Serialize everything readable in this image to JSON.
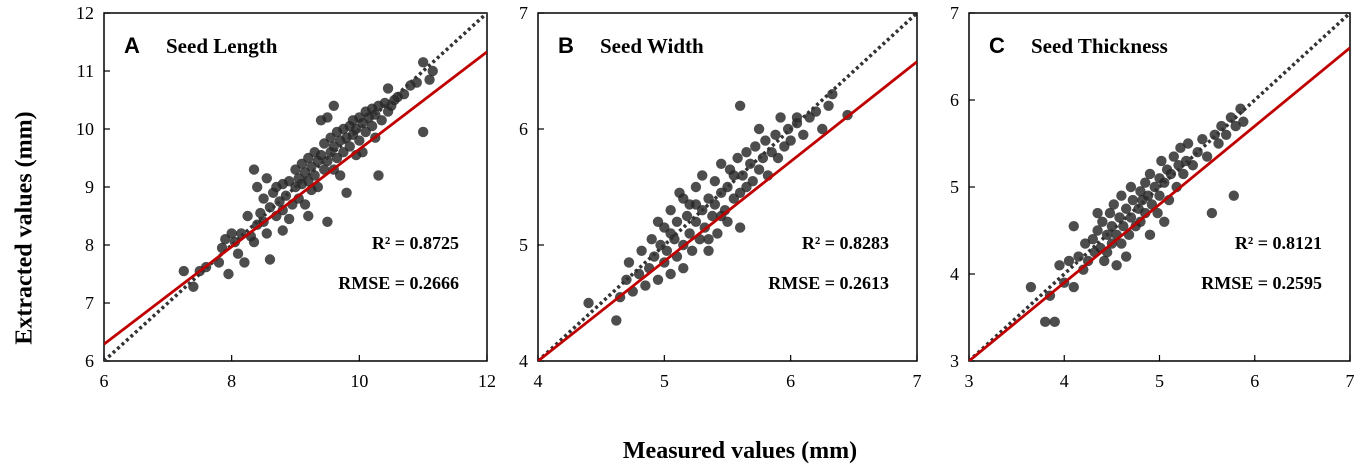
{
  "figure": {
    "xlabel": "Measured values (mm)",
    "ylabel": "Extracted values (mm)"
  },
  "colors": {
    "points": "#262626",
    "regression": "#c00000",
    "identity": "#333333"
  },
  "chart_data": [
    {
      "type": "scatter",
      "id": "A",
      "letter": "A",
      "title": "Seed Length",
      "xlim": [
        6,
        12
      ],
      "ylim": [
        6,
        12
      ],
      "xticks": [
        "6",
        "8",
        "10",
        "12"
      ],
      "yticks": [
        "6",
        "7",
        "8",
        "9",
        "10",
        "11",
        "12"
      ],
      "r2": "R² = 0.8725",
      "rmse": "RMSE = 0.2666",
      "fit": {
        "slope": 0.84,
        "intercept": 1.25
      },
      "identity": true,
      "points": [
        [
          7.25,
          7.55
        ],
        [
          7.4,
          7.28
        ],
        [
          7.5,
          7.55
        ],
        [
          7.6,
          7.62
        ],
        [
          7.8,
          7.7
        ],
        [
          7.85,
          7.95
        ],
        [
          7.9,
          8.1
        ],
        [
          7.95,
          7.5
        ],
        [
          8.0,
          8.2
        ],
        [
          8.05,
          8.05
        ],
        [
          8.1,
          7.85
        ],
        [
          8.15,
          8.2
        ],
        [
          8.2,
          7.7
        ],
        [
          8.25,
          8.5
        ],
        [
          8.3,
          8.15
        ],
        [
          8.35,
          8.05
        ],
        [
          8.4,
          9.0
        ],
        [
          8.4,
          8.35
        ],
        [
          8.45,
          8.55
        ],
        [
          8.5,
          8.4
        ],
        [
          8.5,
          8.8
        ],
        [
          8.55,
          8.2
        ],
        [
          8.6,
          7.75
        ],
        [
          8.6,
          8.65
        ],
        [
          8.65,
          8.9
        ],
        [
          8.7,
          8.5
        ],
        [
          8.7,
          9.0
        ],
        [
          8.75,
          8.75
        ],
        [
          8.8,
          8.6
        ],
        [
          8.8,
          9.05
        ],
        [
          8.85,
          8.85
        ],
        [
          8.9,
          9.1
        ],
        [
          8.9,
          8.45
        ],
        [
          8.95,
          8.7
        ],
        [
          9.0,
          9.0
        ],
        [
          9.0,
          9.3
        ],
        [
          9.05,
          8.8
        ],
        [
          9.05,
          9.15
        ],
        [
          9.1,
          9.4
        ],
        [
          9.1,
          9.05
        ],
        [
          9.15,
          8.7
        ],
        [
          9.15,
          9.25
        ],
        [
          9.2,
          9.5
        ],
        [
          9.2,
          9.1
        ],
        [
          9.25,
          8.95
        ],
        [
          9.25,
          9.35
        ],
        [
          9.3,
          9.6
        ],
        [
          9.3,
          9.2
        ],
        [
          9.35,
          9.45
        ],
        [
          9.35,
          9.0
        ],
        [
          9.4,
          10.15
        ],
        [
          9.4,
          9.55
        ],
        [
          9.45,
          9.3
        ],
        [
          9.45,
          9.75
        ],
        [
          9.5,
          9.45
        ],
        [
          9.5,
          8.4
        ],
        [
          9.55,
          9.6
        ],
        [
          9.55,
          9.85
        ],
        [
          9.6,
          9.3
        ],
        [
          9.6,
          9.7
        ],
        [
          9.65,
          9.95
        ],
        [
          9.65,
          9.5
        ],
        [
          9.7,
          9.8
        ],
        [
          9.7,
          9.2
        ],
        [
          9.75,
          10.0
        ],
        [
          9.75,
          9.6
        ],
        [
          9.8,
          9.85
        ],
        [
          9.8,
          8.9
        ],
        [
          9.85,
          10.05
        ],
        [
          9.85,
          9.7
        ],
        [
          9.9,
          9.9
        ],
        [
          9.9,
          10.15
        ],
        [
          9.95,
          9.55
        ],
        [
          9.95,
          10.0
        ],
        [
          10.0,
          10.2
        ],
        [
          10.0,
          9.8
        ],
        [
          10.05,
          10.1
        ],
        [
          10.05,
          9.6
        ],
        [
          10.1,
          10.3
        ],
        [
          10.1,
          9.95
        ],
        [
          10.15,
          10.2
        ],
        [
          10.2,
          10.35
        ],
        [
          10.2,
          10.05
        ],
        [
          10.25,
          10.25
        ],
        [
          10.3,
          9.2
        ],
        [
          10.3,
          10.4
        ],
        [
          10.35,
          10.15
        ],
        [
          10.4,
          10.45
        ],
        [
          10.45,
          10.3
        ],
        [
          10.5,
          10.4
        ],
        [
          10.55,
          10.5
        ],
        [
          10.6,
          10.55
        ],
        [
          10.7,
          10.6
        ],
        [
          10.8,
          10.75
        ],
        [
          10.9,
          10.8
        ],
        [
          11.0,
          11.15
        ],
        [
          11.0,
          9.95
        ],
        [
          11.1,
          10.85
        ],
        [
          11.15,
          11.0
        ],
        [
          8.35,
          9.3
        ],
        [
          8.55,
          9.15
        ],
        [
          9.5,
          10.2
        ],
        [
          10.25,
          9.85
        ],
        [
          9.2,
          8.5
        ],
        [
          8.8,
          8.25
        ],
        [
          9.6,
          10.4
        ],
        [
          10.45,
          10.7
        ]
      ]
    },
    {
      "type": "scatter",
      "id": "B",
      "letter": "B",
      "title": "Seed Width",
      "xlim": [
        4,
        7
      ],
      "ylim": [
        4,
        7
      ],
      "xticks": [
        "4",
        "5",
        "6",
        "7"
      ],
      "yticks": [
        "4",
        "5",
        "6",
        "7"
      ],
      "r2": "R² = 0.8283",
      "rmse": "RMSE = 0.2613",
      "fit": {
        "slope": 0.86,
        "intercept": 0.56
      },
      "identity": true,
      "points": [
        [
          4.4,
          4.5
        ],
        [
          4.62,
          4.35
        ],
        [
          4.65,
          4.55
        ],
        [
          4.7,
          4.7
        ],
        [
          4.72,
          4.85
        ],
        [
          4.75,
          4.6
        ],
        [
          4.8,
          4.75
        ],
        [
          4.82,
          4.95
        ],
        [
          4.85,
          4.65
        ],
        [
          4.88,
          4.8
        ],
        [
          4.9,
          5.05
        ],
        [
          4.92,
          4.9
        ],
        [
          4.95,
          4.7
        ],
        [
          4.97,
          5.0
        ],
        [
          5.0,
          4.85
        ],
        [
          5.0,
          5.15
        ],
        [
          5.02,
          4.95
        ],
        [
          5.05,
          5.3
        ],
        [
          5.05,
          4.75
        ],
        [
          5.08,
          5.05
        ],
        [
          5.1,
          4.9
        ],
        [
          5.1,
          5.2
        ],
        [
          5.12,
          5.45
        ],
        [
          5.15,
          5.0
        ],
        [
          5.15,
          4.8
        ],
        [
          5.18,
          5.25
        ],
        [
          5.2,
          5.1
        ],
        [
          5.2,
          5.35
        ],
        [
          5.22,
          4.95
        ],
        [
          5.25,
          5.2
        ],
        [
          5.25,
          5.5
        ],
        [
          5.28,
          5.05
        ],
        [
          5.3,
          5.3
        ],
        [
          5.3,
          5.6
        ],
        [
          5.32,
          5.15
        ],
        [
          5.35,
          5.4
        ],
        [
          5.35,
          4.95
        ],
        [
          5.38,
          5.25
        ],
        [
          5.4,
          5.55
        ],
        [
          5.4,
          5.35
        ],
        [
          5.42,
          5.1
        ],
        [
          5.45,
          5.45
        ],
        [
          5.45,
          5.7
        ],
        [
          5.48,
          5.3
        ],
        [
          5.5,
          5.5
        ],
        [
          5.5,
          5.2
        ],
        [
          5.52,
          5.65
        ],
        [
          5.55,
          5.4
        ],
        [
          5.55,
          5.6
        ],
        [
          5.58,
          5.75
        ],
        [
          5.6,
          5.45
        ],
        [
          5.6,
          5.15
        ],
        [
          5.62,
          5.6
        ],
        [
          5.65,
          5.8
        ],
        [
          5.65,
          5.5
        ],
        [
          5.68,
          5.7
        ],
        [
          5.7,
          5.55
        ],
        [
          5.72,
          5.85
        ],
        [
          5.75,
          5.65
        ],
        [
          5.75,
          6.0
        ],
        [
          5.78,
          5.75
        ],
        [
          5.8,
          5.9
        ],
        [
          5.82,
          5.6
        ],
        [
          5.85,
          5.8
        ],
        [
          5.88,
          5.95
        ],
        [
          5.9,
          5.75
        ],
        [
          5.92,
          6.1
        ],
        [
          5.95,
          5.85
        ],
        [
          5.98,
          6.0
        ],
        [
          6.0,
          5.9
        ],
        [
          6.05,
          6.05
        ],
        [
          6.1,
          5.95
        ],
        [
          6.15,
          6.1
        ],
        [
          6.2,
          6.15
        ],
        [
          6.25,
          6.0
        ],
        [
          6.3,
          6.2
        ],
        [
          6.33,
          6.3
        ],
        [
          6.45,
          6.12
        ],
        [
          5.6,
          6.2
        ],
        [
          5.25,
          5.35
        ],
        [
          5.05,
          5.1
        ],
        [
          4.95,
          5.2
        ],
        [
          5.35,
          5.05
        ],
        [
          5.15,
          5.4
        ],
        [
          5.45,
          5.25
        ],
        [
          6.05,
          6.1
        ]
      ]
    },
    {
      "type": "scatter",
      "id": "C",
      "letter": "C",
      "title": "Seed Thickness",
      "xlim": [
        3,
        7
      ],
      "ylim": [
        3,
        7
      ],
      "xticks": [
        "3",
        "4",
        "5",
        "6",
        "7"
      ],
      "yticks": [
        "3",
        "4",
        "5",
        "6",
        "7"
      ],
      "r2": "R² = 0.8121",
      "rmse": "RMSE = 0.2595",
      "fit": {
        "slope": 0.9,
        "intercept": 0.3
      },
      "identity": true,
      "points": [
        [
          3.65,
          3.85
        ],
        [
          3.8,
          3.45
        ],
        [
          3.85,
          3.75
        ],
        [
          3.9,
          3.45
        ],
        [
          3.95,
          4.1
        ],
        [
          4.0,
          3.9
        ],
        [
          4.05,
          4.15
        ],
        [
          4.1,
          3.85
        ],
        [
          4.15,
          4.2
        ],
        [
          4.2,
          4.05
        ],
        [
          4.22,
          4.35
        ],
        [
          4.25,
          4.15
        ],
        [
          4.3,
          4.4
        ],
        [
          4.32,
          4.25
        ],
        [
          4.35,
          4.5
        ],
        [
          4.38,
          4.3
        ],
        [
          4.4,
          4.6
        ],
        [
          4.42,
          4.15
        ],
        [
          4.45,
          4.45
        ],
        [
          4.48,
          4.7
        ],
        [
          4.5,
          4.35
        ],
        [
          4.5,
          4.55
        ],
        [
          4.52,
          4.8
        ],
        [
          4.55,
          4.45
        ],
        [
          4.58,
          4.65
        ],
        [
          4.6,
          4.35
        ],
        [
          4.6,
          4.9
        ],
        [
          4.62,
          4.55
        ],
        [
          4.65,
          4.75
        ],
        [
          4.68,
          4.45
        ],
        [
          4.7,
          4.65
        ],
        [
          4.7,
          5.0
        ],
        [
          4.72,
          4.85
        ],
        [
          4.75,
          4.55
        ],
        [
          4.78,
          4.75
        ],
        [
          4.8,
          4.95
        ],
        [
          4.8,
          4.6
        ],
        [
          4.82,
          4.85
        ],
        [
          4.85,
          5.05
        ],
        [
          4.85,
          4.7
        ],
        [
          4.88,
          4.9
        ],
        [
          4.9,
          5.15
        ],
        [
          4.92,
          4.8
        ],
        [
          4.95,
          5.0
        ],
        [
          4.98,
          4.7
        ],
        [
          5.0,
          5.1
        ],
        [
          5.0,
          4.9
        ],
        [
          5.02,
          5.3
        ],
        [
          5.05,
          5.05
        ],
        [
          5.08,
          5.2
        ],
        [
          5.1,
          4.85
        ],
        [
          5.12,
          5.15
        ],
        [
          5.15,
          5.35
        ],
        [
          5.18,
          5.0
        ],
        [
          5.2,
          5.25
        ],
        [
          5.22,
          5.45
        ],
        [
          5.25,
          5.15
        ],
        [
          5.28,
          5.3
        ],
        [
          5.3,
          5.5
        ],
        [
          5.35,
          5.25
        ],
        [
          5.4,
          5.4
        ],
        [
          5.45,
          5.55
        ],
        [
          5.5,
          5.35
        ],
        [
          5.55,
          4.7
        ],
        [
          5.58,
          5.6
        ],
        [
          5.62,
          5.5
        ],
        [
          5.65,
          5.7
        ],
        [
          5.7,
          5.6
        ],
        [
          5.75,
          5.8
        ],
        [
          5.78,
          4.9
        ],
        [
          5.8,
          5.7
        ],
        [
          5.85,
          5.9
        ],
        [
          5.88,
          5.75
        ],
        [
          4.45,
          4.25
        ],
        [
          4.55,
          4.1
        ],
        [
          4.65,
          4.2
        ],
        [
          4.9,
          4.45
        ],
        [
          5.05,
          4.6
        ],
        [
          4.35,
          4.7
        ],
        [
          4.1,
          4.55
        ]
      ]
    }
  ]
}
